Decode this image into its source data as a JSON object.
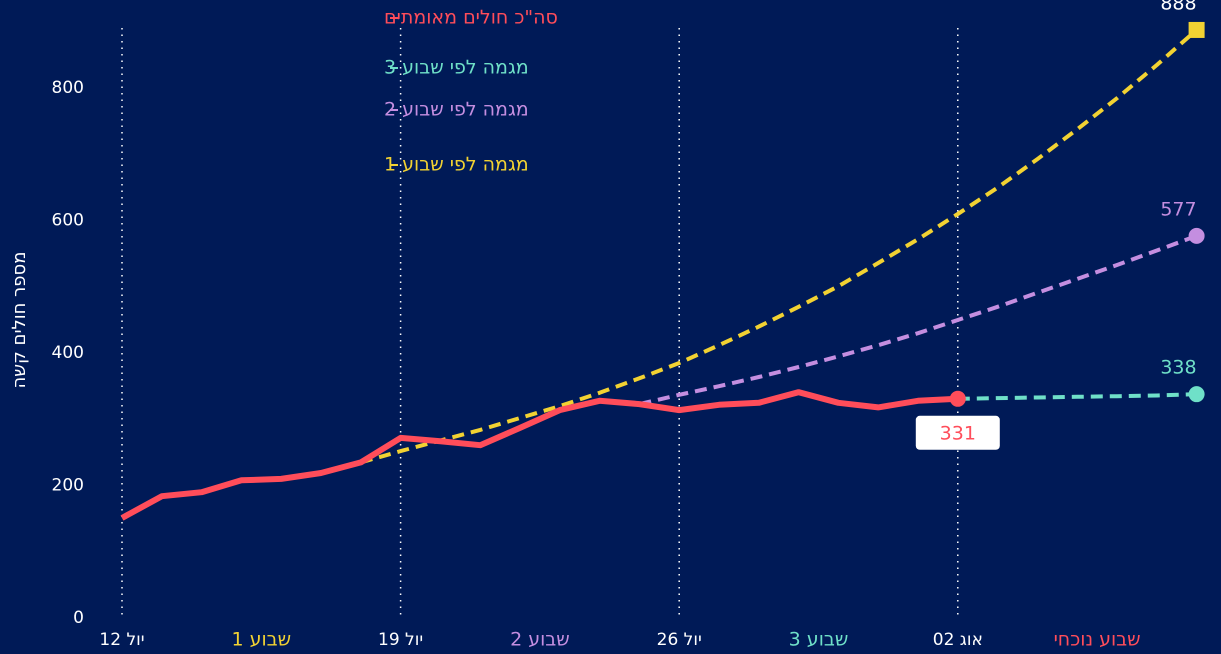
{
  "chart_data": {
    "type": "line",
    "y_label": "מספר חולים קשה",
    "categories": [
      "יול 12",
      null,
      null,
      null,
      null,
      null,
      null,
      "יול 19",
      null,
      null,
      null,
      null,
      null,
      null,
      "יול 26",
      null,
      null,
      null,
      null,
      null,
      null,
      "אוג 02",
      null,
      null,
      null,
      null,
      null,
      null
    ],
    "series": [
      {
        "name": "סה\"כ חולים מאומתים",
        "color": "#ff4d5a",
        "dashed": false,
        "values": [
          151,
          184,
          190,
          208,
          210,
          219,
          235,
          272,
          267,
          261,
          287,
          314,
          328,
          323,
          314,
          322,
          325,
          341,
          325,
          318,
          328,
          331,
          null,
          null,
          null,
          null,
          null,
          null
        ]
      },
      {
        "name": "מגמה לפי שבוע 1",
        "color": "#f2d232",
        "dashed": true,
        "values": [
          null,
          null,
          null,
          null,
          null,
          null,
          235,
          252,
          268,
          284,
          302,
          320,
          340,
          362,
          385,
          412,
          440,
          470,
          501,
          536,
          572,
          610,
          650,
          693,
          738,
          785,
          835,
          888
        ]
      },
      {
        "name": "מגמה לפי שבוע 2",
        "color": "#c48ee0",
        "dashed": true,
        "values": [
          null,
          null,
          null,
          null,
          null,
          null,
          null,
          null,
          null,
          null,
          null,
          null,
          null,
          323,
          337,
          350,
          364,
          379,
          395,
          412,
          430,
          450,
          470,
          491,
          512,
          533,
          555,
          577
        ]
      },
      {
        "name": "מגמה לפי שבוע 3",
        "color": "#6fe0c8",
        "dashed": true,
        "values": [
          null,
          null,
          null,
          null,
          null,
          null,
          null,
          null,
          null,
          null,
          null,
          null,
          null,
          null,
          null,
          null,
          null,
          null,
          null,
          null,
          null,
          331,
          332,
          333,
          334,
          335,
          336,
          338
        ]
      }
    ],
    "legend_order": [
      0,
      3,
      2,
      1
    ],
    "week_labels": [
      {
        "text": "שבוע 1",
        "color": "#f2d232"
      },
      {
        "text": "שבוע 2",
        "color": "#c48ee0"
      },
      {
        "text": "שבוע 3",
        "color": "#6fe0c8"
      },
      {
        "text": "שבוע נוכחי",
        "color": "#ff4d5a"
      }
    ],
    "ylim": [
      0,
      900
    ],
    "yticks": [
      0,
      200,
      400,
      600,
      800
    ],
    "grid": "x-dotted"
  }
}
